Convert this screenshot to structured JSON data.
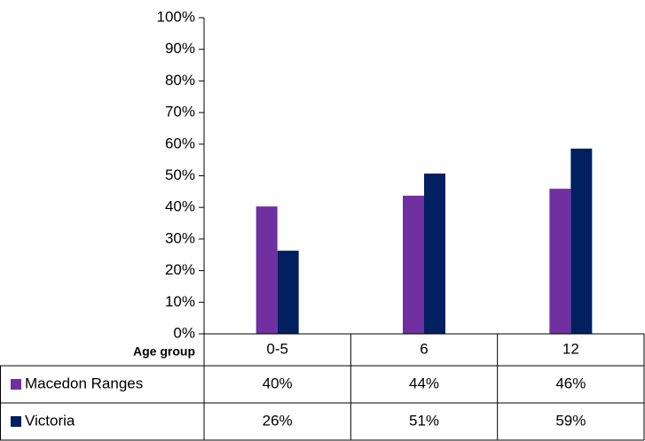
{
  "chart_data": {
    "type": "bar",
    "x_label": "Age group",
    "categories": [
      "0-5",
      "6",
      "12"
    ],
    "series": [
      {
        "name": "Macedon Ranges",
        "color": "#7030a0",
        "values": [
          40.3,
          43.7,
          45.9
        ],
        "value_labels": [
          "40%",
          "44%",
          "46%"
        ]
      },
      {
        "name": "Victoria",
        "color": "#002060",
        "values": [
          26.3,
          50.7,
          58.6
        ],
        "value_labels": [
          "26%",
          "51%",
          "59%"
        ]
      }
    ],
    "ylim": [
      0,
      100
    ],
    "yticks": [
      {
        "value": 0,
        "label": "0%"
      },
      {
        "value": 10,
        "label": "10%"
      },
      {
        "value": 20,
        "label": "20%"
      },
      {
        "value": 30,
        "label": "30%"
      },
      {
        "value": 40,
        "label": "40%"
      },
      {
        "value": 50,
        "label": "50%"
      },
      {
        "value": 60,
        "label": "60%"
      },
      {
        "value": 70,
        "label": "70%"
      },
      {
        "value": 80,
        "label": "80%"
      },
      {
        "value": 90,
        "label": "90%"
      },
      {
        "value": 100,
        "label": "100%"
      }
    ],
    "grid": false,
    "data_table": true
  }
}
